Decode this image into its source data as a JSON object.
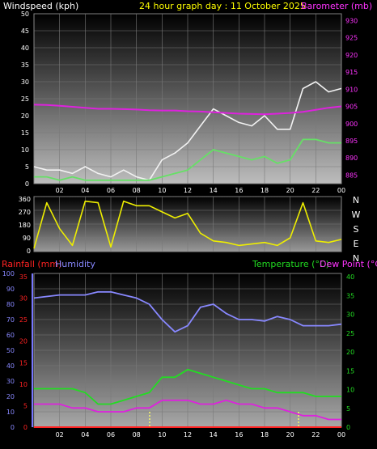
{
  "chart_data": [
    {
      "type": "line",
      "title": "24 hour graph day : 11 October 2025",
      "ylabel": "Windspeed (kph)",
      "y2label": "Barometer (mb)",
      "ylim": [
        0,
        50
      ],
      "y2lim": [
        882.5,
        932
      ],
      "yticks": [
        "0",
        "5",
        "10",
        "15",
        "20",
        "25",
        "30",
        "35",
        "40",
        "45",
        "50"
      ],
      "y2ticks": [
        "885",
        "890",
        "895",
        "900",
        "905",
        "910",
        "915",
        "920",
        "925",
        "930"
      ],
      "xticks": [
        "02",
        "04",
        "06",
        "08",
        "10",
        "12",
        "14",
        "16",
        "18",
        "20",
        "22",
        "00"
      ],
      "colors": {
        "gust": "#f2f2f2",
        "speed": "#66e066",
        "barometer": "#dd22dd",
        "label_left": "#ffffff",
        "label_title": "#ffff00",
        "label_right": "#ff33ff"
      },
      "x": [
        0,
        1,
        2,
        3,
        4,
        5,
        6,
        7,
        8,
        9,
        10,
        11,
        12,
        13,
        14,
        15,
        16,
        17,
        18,
        19,
        20,
        21,
        22,
        23,
        24
      ],
      "series": [
        {
          "name": "gust",
          "values": [
            5,
            4,
            4,
            3,
            5,
            3,
            2,
            4,
            2,
            1,
            7,
            9,
            12,
            17,
            22,
            20,
            18,
            17,
            20,
            16,
            16,
            28,
            30,
            27,
            28
          ]
        },
        {
          "name": "speed",
          "values": [
            2,
            2,
            1,
            2,
            1,
            1,
            1,
            1,
            1,
            1,
            2,
            3,
            4,
            7,
            10,
            9,
            8,
            7,
            8,
            6,
            7,
            13,
            13,
            12,
            12
          ]
        },
        {
          "name": "barometer",
          "values": [
            905.5,
            905.4,
            905.2,
            904.9,
            904.6,
            904.3,
            904.3,
            904.2,
            904.1,
            903.9,
            903.8,
            903.8,
            903.6,
            903.5,
            903.3,
            903.1,
            902.9,
            902.8,
            902.7,
            902.9,
            903.1,
            903.4,
            904.0,
            904.6,
            905.0
          ]
        }
      ]
    },
    {
      "type": "line",
      "ylabel": "",
      "ylim": [
        0,
        360
      ],
      "yticks": [
        "0",
        "90",
        "180",
        "270",
        "360"
      ],
      "compass": [
        "N",
        "W",
        "S",
        "E",
        "N"
      ],
      "xticks": [
        "02",
        "04",
        "06",
        "08",
        "10",
        "12",
        "14",
        "16",
        "18",
        "20",
        "22",
        "00"
      ],
      "colors": {
        "direction": "#eeee00"
      },
      "x": [
        0,
        1,
        2,
        3,
        4,
        5,
        6,
        7,
        8,
        9,
        10,
        11,
        12,
        13,
        14,
        15,
        16,
        17,
        18,
        19,
        20,
        21,
        22,
        23,
        24
      ],
      "series": [
        {
          "name": "direction",
          "values": [
            20,
            320,
            150,
            40,
            330,
            320,
            30,
            330,
            300,
            300,
            260,
            220,
            250,
            120,
            70,
            60,
            40,
            50,
            60,
            40,
            90,
            320,
            70,
            60,
            80
          ]
        }
      ]
    },
    {
      "type": "line",
      "ylabel": "Rainfall (mm)",
      "ylabel2": "Humidity",
      "y2label": "Temperature (°C)",
      "y2label2": "Dew Point (°C)",
      "ylim_humidity": [
        0,
        100
      ],
      "ylim_rain": [
        0,
        35
      ],
      "ylim_temp": [
        0,
        40
      ],
      "yticks_humidity": [
        "0",
        "10",
        "20",
        "30",
        "40",
        "50",
        "60",
        "70",
        "80",
        "90",
        "100"
      ],
      "yticks_rain": [
        "0",
        "5",
        "10",
        "15",
        "20",
        "25",
        "30",
        "35"
      ],
      "yticks_temp": [
        "0",
        "5",
        "10",
        "15",
        "20",
        "25",
        "30",
        "35",
        "40"
      ],
      "xticks": [
        "02",
        "04",
        "06",
        "08",
        "10",
        "12",
        "14",
        "16",
        "18",
        "20",
        "22",
        "00"
      ],
      "colors": {
        "humidity": "#8888ff",
        "temperature": "#22dd22",
        "dewpoint": "#dd22dd",
        "rainfall": "#ff2222",
        "label_rain": "#ff2222",
        "label_humidity": "#8888ff",
        "label_temp": "#22dd22",
        "label_dew": "#ff33ff"
      },
      "x": [
        0,
        1,
        2,
        3,
        4,
        5,
        6,
        7,
        8,
        9,
        10,
        11,
        12,
        13,
        14,
        15,
        16,
        17,
        18,
        19,
        20,
        21,
        22,
        23,
        24
      ],
      "series": [
        {
          "name": "humidity",
          "values": [
            84,
            85,
            86,
            86,
            86,
            88,
            88,
            86,
            84,
            80,
            70,
            62,
            66,
            78,
            80,
            74,
            70,
            70,
            69,
            72,
            70,
            66,
            66,
            66,
            67
          ]
        },
        {
          "name": "temperature",
          "values": [
            10,
            10,
            10,
            10,
            9,
            6,
            6,
            7,
            8,
            9,
            13,
            13,
            15,
            14,
            13,
            12,
            11,
            10,
            10,
            9,
            9,
            9,
            8,
            8,
            8
          ]
        },
        {
          "name": "dewpoint",
          "values": [
            6,
            6,
            6,
            5,
            5,
            4,
            4,
            4,
            5,
            5,
            7,
            7,
            7,
            6,
            6,
            7,
            6,
            6,
            5,
            5,
            4,
            3,
            3,
            2,
            2
          ]
        },
        {
          "name": "rainfall",
          "values": [
            0,
            0,
            0,
            0,
            0,
            0,
            0,
            0,
            0,
            0,
            0,
            0,
            0,
            0,
            0,
            0,
            0,
            0,
            0,
            0,
            0,
            0,
            0,
            0,
            0
          ]
        }
      ]
    }
  ]
}
